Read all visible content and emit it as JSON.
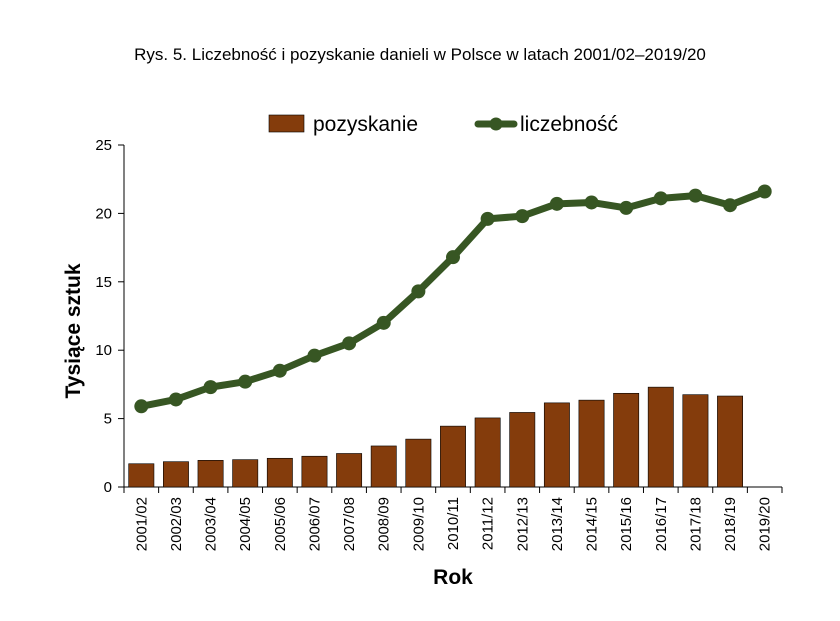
{
  "chart_data": {
    "type": "bar",
    "title": "Rys. 5. Liczebność i pozyskanie danieli w Polsce w latach 2001/02–2019/20",
    "xlabel": "Rok",
    "ylabel": "Tysiące sztuk",
    "ylim": [
      0,
      25
    ],
    "yticks": [
      0,
      5,
      10,
      15,
      20,
      25
    ],
    "grid": false,
    "legend_position": "top",
    "categories": [
      "2001/02",
      "2002/03",
      "2003/04",
      "2004/05",
      "2005/06",
      "2006/07",
      "2007/08",
      "2008/09",
      "2009/10",
      "2010/11",
      "2011/12",
      "2012/13",
      "2013/14",
      "2014/15",
      "2015/16",
      "2016/17",
      "2017/18",
      "2018/19",
      "2019/20"
    ],
    "series": [
      {
        "name": "pozyskanie",
        "type": "bar",
        "color": "#843c0c",
        "values": [
          1.7,
          1.85,
          1.95,
          2.0,
          2.1,
          2.25,
          2.45,
          3.0,
          3.5,
          4.45,
          5.05,
          5.45,
          6.15,
          6.35,
          6.85,
          7.3,
          6.75,
          6.65,
          null
        ]
      },
      {
        "name": "liczebność",
        "type": "line",
        "color": "#375623",
        "values": [
          5.9,
          6.4,
          7.3,
          7.7,
          8.5,
          9.6,
          10.5,
          12.0,
          14.3,
          16.8,
          19.6,
          19.8,
          20.7,
          20.8,
          20.4,
          21.1,
          21.3,
          20.6,
          21.6
        ]
      }
    ]
  }
}
